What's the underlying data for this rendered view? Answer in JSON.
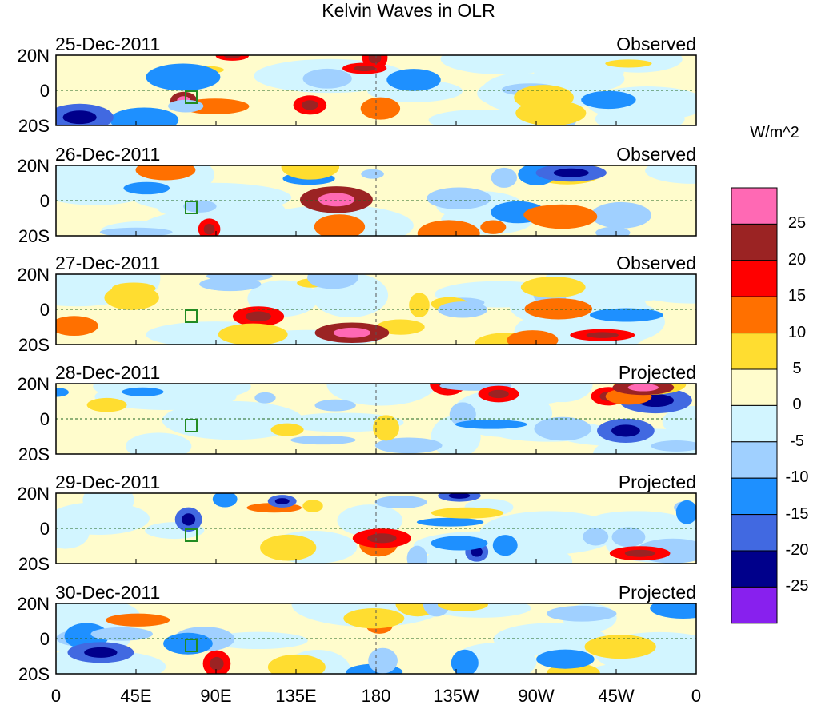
{
  "title": "Kelvin Waves in OLR",
  "units": "W/m^2",
  "panels": [
    {
      "date": "25-Dec-2011",
      "status": "Observed"
    },
    {
      "date": "26-Dec-2011",
      "status": "Observed"
    },
    {
      "date": "27-Dec-2011",
      "status": "Observed"
    },
    {
      "date": "28-Dec-2011",
      "status": "Projected"
    },
    {
      "date": "29-Dec-2011",
      "status": "Projected"
    },
    {
      "date": "30-Dec-2011",
      "status": "Projected"
    }
  ],
  "y_ticks": [
    "20N",
    "0",
    "20S"
  ],
  "x_ticks": [
    "0",
    "45E",
    "90E",
    "135E",
    "180",
    "135W",
    "90W",
    "45W",
    "0"
  ],
  "colorbar": {
    "labels": [
      "25",
      "20",
      "15",
      "10",
      "5",
      "0",
      "-5",
      "-10",
      "-15",
      "-20",
      "-25"
    ],
    "colors": [
      "#ff69b4",
      "#9b2323",
      "#ff0000",
      "#ff7000",
      "#ffdd30",
      "#fffccc",
      "#d2f5ff",
      "#a0d0ff",
      "#1e90ff",
      "#4169e1",
      "#00008b",
      "#8820ee"
    ]
  },
  "coast_color": "#228b22"
}
